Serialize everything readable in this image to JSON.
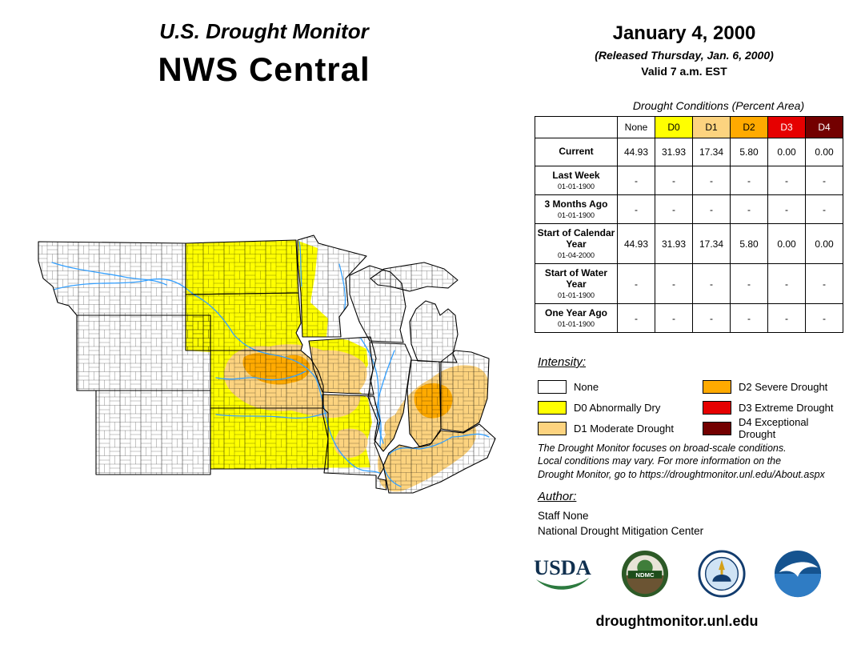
{
  "header": {
    "title": "U.S. Drought Monitor",
    "region": "NWS Central",
    "date": "January 4, 2000",
    "released": "(Released Thursday, Jan. 6, 2000)",
    "valid": "Valid 7 a.m. EST"
  },
  "table": {
    "title": "Drought Conditions (Percent Area)",
    "columns": [
      {
        "label": "None",
        "color": "#ffffff",
        "text_color": "#000000"
      },
      {
        "label": "D0",
        "color": "#ffff00",
        "text_color": "#000000"
      },
      {
        "label": "D1",
        "color": "#fcd37f",
        "text_color": "#000000"
      },
      {
        "label": "D2",
        "color": "#ffaa00",
        "text_color": "#000000"
      },
      {
        "label": "D3",
        "color": "#e60000",
        "text_color": "#ffffff"
      },
      {
        "label": "D4",
        "color": "#730000",
        "text_color": "#ffffff"
      }
    ],
    "rows": [
      {
        "label": "Current",
        "date": "",
        "values": [
          "44.93",
          "31.93",
          "17.34",
          "5.80",
          "0.00",
          "0.00"
        ]
      },
      {
        "label": "Last Week",
        "date": "01-01-1900",
        "values": [
          "-",
          "-",
          "-",
          "-",
          "-",
          "-"
        ]
      },
      {
        "label": "3 Months Ago",
        "date": "01-01-1900",
        "values": [
          "-",
          "-",
          "-",
          "-",
          "-",
          "-"
        ]
      },
      {
        "label": "Start of Calendar Year",
        "date": "01-04-2000",
        "values": [
          "44.93",
          "31.93",
          "17.34",
          "5.80",
          "0.00",
          "0.00"
        ]
      },
      {
        "label": "Start of Water Year",
        "date": "01-01-1900",
        "values": [
          "-",
          "-",
          "-",
          "-",
          "-",
          "-"
        ]
      },
      {
        "label": "One Year Ago",
        "date": "01-01-1900",
        "values": [
          "-",
          "-",
          "-",
          "-",
          "-",
          "-"
        ]
      }
    ]
  },
  "legend": {
    "title": "Intensity:",
    "items": [
      {
        "label": "None",
        "color": "#ffffff"
      },
      {
        "label": "D0 Abnormally Dry",
        "color": "#ffff00"
      },
      {
        "label": "D1 Moderate Drought",
        "color": "#fcd37f"
      },
      {
        "label": "D2 Severe Drought",
        "color": "#ffaa00"
      },
      {
        "label": "D3 Extreme Drought",
        "color": "#e60000"
      },
      {
        "label": "D4 Exceptional Drought",
        "color": "#730000"
      }
    ]
  },
  "disclaimer": {
    "line1": "The Drought Monitor focuses on broad-scale conditions.",
    "line2": "Local conditions may vary. For more information on the",
    "line3": "Drought Monitor, go to https://droughtmonitor.unl.edu/About.aspx"
  },
  "author": {
    "title": "Author:",
    "name": "Staff None",
    "organization": "National Drought Mitigation Center"
  },
  "footer": {
    "url": "droughtmonitor.unl.edu"
  },
  "logos": [
    {
      "name": "usda-logo",
      "label": "USDA"
    },
    {
      "name": "ndmc-logo",
      "label": "NDMC"
    },
    {
      "name": "commerce-seal-logo",
      "label": ""
    },
    {
      "name": "noaa-logo",
      "label": ""
    }
  ]
}
